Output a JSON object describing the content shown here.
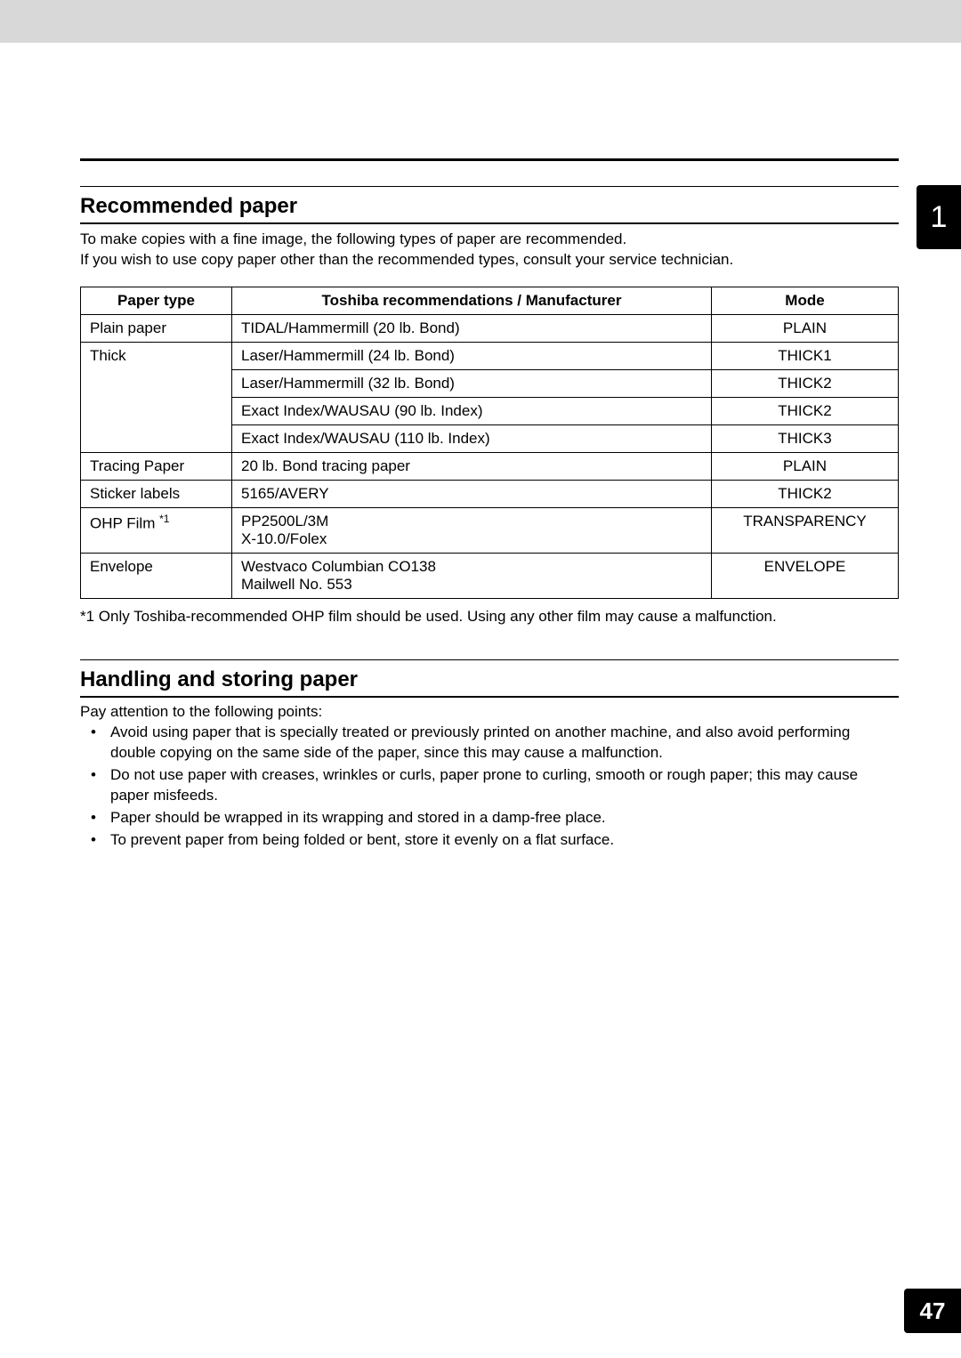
{
  "chapter_number": "1",
  "page_number": "47",
  "section1": {
    "heading": "Recommended paper",
    "intro_line1": "To make copies with a fine image, the following types of paper are recommended.",
    "intro_line2": "If you wish to use copy paper other than the recommended types, consult your service technician."
  },
  "table": {
    "headers": {
      "paper_type": "Paper type",
      "recommendation": "Toshiba recommendations / Manufacturer",
      "mode": "Mode"
    },
    "rows": [
      {
        "type": "Plain paper",
        "rec": "TIDAL/Hammermill (20 lb. Bond)",
        "mode": "PLAIN",
        "rowspan_type": 1
      },
      {
        "type": "Thick",
        "rec": "Laser/Hammermill (24 lb. Bond)",
        "mode": "THICK1",
        "rowspan_type": 4
      },
      {
        "type": "",
        "rec": "Laser/Hammermill (32 lb. Bond)",
        "mode": "THICK2"
      },
      {
        "type": "",
        "rec": "Exact Index/WAUSAU (90 lb. Index)",
        "mode": "THICK2"
      },
      {
        "type": "",
        "rec": "Exact Index/WAUSAU (110 lb. Index)",
        "mode": "THICK3"
      },
      {
        "type": "Tracing Paper",
        "rec": "20 lb. Bond tracing paper",
        "mode": "PLAIN",
        "rowspan_type": 1
      },
      {
        "type": "Sticker labels",
        "rec": "5165/AVERY",
        "mode": "THICK2",
        "rowspan_type": 1
      },
      {
        "type_prefix": "OHP Film ",
        "type_sup": "*1",
        "rec": "PP2500L/3M\nX-10.0/Folex",
        "mode": "TRANSPARENCY",
        "rowspan_type": 1
      },
      {
        "type": "Envelope",
        "rec": "Westvaco Columbian CO138\nMailwell No. 553",
        "mode": "ENVELOPE",
        "rowspan_type": 1
      }
    ],
    "footnote": "*1   Only Toshiba-recommended OHP film should be used. Using any other film may cause a malfunction."
  },
  "section2": {
    "heading": "Handling and storing paper",
    "intro": "Pay attention to the following points:",
    "bullets": [
      "Avoid using paper that is specially treated or previously printed on another machine, and also avoid performing double copying on the same side of the paper, since this may cause a malfunction.",
      "Do not use paper with creases, wrinkles or curls, paper prone to curling, smooth or rough paper; this may cause paper misfeeds.",
      "Paper should be wrapped in its wrapping and stored in a damp-free place.",
      "To prevent paper from being folded or bent, store it evenly on a flat surface."
    ]
  },
  "colors": {
    "page_bg": "#ffffff",
    "outer_bg": "#d8d8d8",
    "tab_bg": "#000000",
    "tab_fg": "#ffffff",
    "text": "#000000"
  }
}
